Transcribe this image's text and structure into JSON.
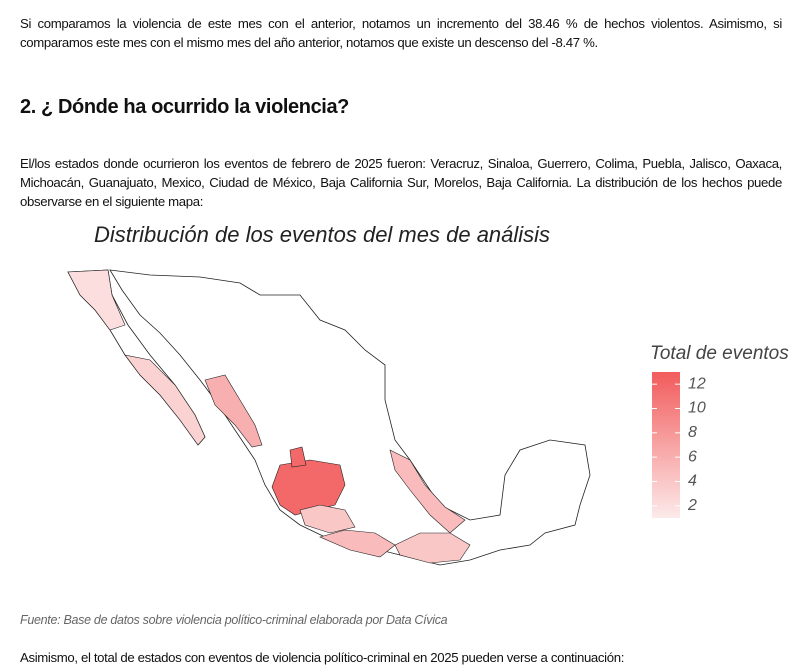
{
  "intro": "Si comparamos la violencia de este mes con el anterior, notamos un incremento del 38.46 % de hechos violentos.  Asimismo, si comparamos este mes con el mismo mes del año anterior, notamos que existe un descenso del -8.47 %.",
  "heading": "2. ¿ Dónde ha ocurrido la violencia?",
  "paragraph": "El/los estados donde ocurrieron los eventos de febrero de 2025 fueron: Veracruz, Sinaloa, Guerrero, Colima, Puebla, Jalisco, Oaxaca, Michoacán, Guanajuato, Mexico, Ciudad de México, Baja California Sur, Morelos, Baja California.  La distribución de los hechos puede observarse en el siguiente mapa:",
  "chart_data": {
    "type": "choropleth",
    "title": "Distribución de los eventos del mes de análisis",
    "legend_title": "Total de eventos",
    "values": [
      12,
      6,
      5,
      5,
      4,
      4,
      3,
      2,
      12
    ],
    "colors": [
      "#fdeaea",
      "#f25c5c"
    ],
    "lim": [
      1,
      13
    ],
    "ticks": [
      2,
      4,
      6,
      8,
      10,
      12
    ]
  },
  "source": "Fuente: Base de datos sobre violencia político-criminal elaborada por Data Cívica",
  "closing": "Asimismo, el total de estados con eventos de violencia político-criminal en 2025 pueden verse a continuación:"
}
